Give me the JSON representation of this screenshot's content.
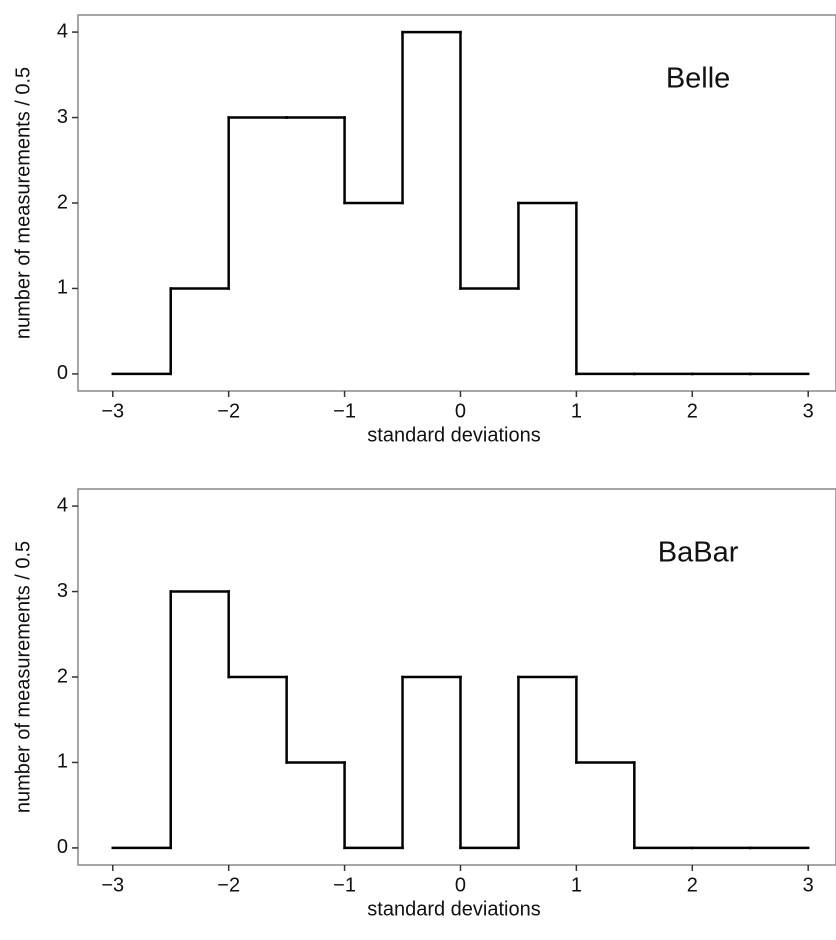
{
  "chart_data": [
    {
      "type": "histogram",
      "annotation": "Belle",
      "xlabel": "standard deviations",
      "ylabel": "number of measurements / 0.5",
      "bins": [
        -3,
        -2.5,
        -2,
        -1.5,
        -1,
        -0.5,
        0,
        0.5,
        1,
        1.5,
        2,
        2.5,
        3
      ],
      "values": [
        0,
        1,
        3,
        3,
        2,
        4,
        1,
        2,
        0,
        0,
        0,
        0
      ],
      "color": "#000000",
      "xlim": [
        -3.3,
        3.24
      ],
      "ylim": [
        -0.2,
        4.2
      ],
      "xticks": [
        {
          "value": -3,
          "label": "−3"
        },
        {
          "value": -2,
          "label": "−2"
        },
        {
          "value": -1,
          "label": "−1"
        },
        0,
        1,
        2,
        3
      ],
      "yticks": [
        0,
        1,
        2,
        3,
        4
      ]
    },
    {
      "type": "histogram",
      "annotation": "BaBar",
      "xlabel": "standard deviations",
      "ylabel": "number of measurements / 0.5",
      "bins": [
        -3,
        -2.5,
        -2,
        -1.5,
        -1,
        -0.5,
        0,
        0.5,
        1,
        1.5,
        2,
        2.5,
        3
      ],
      "values": [
        0,
        3,
        2,
        1,
        0,
        2,
        0,
        2,
        1,
        0,
        0,
        0
      ],
      "color": "#000000",
      "xlim": [
        -3.3,
        3.24
      ],
      "ylim": [
        -0.2,
        4.2
      ],
      "xticks": [
        {
          "value": -3,
          "label": "−3"
        },
        {
          "value": -2,
          "label": "−2"
        },
        {
          "value": -1,
          "label": "−1"
        },
        0,
        1,
        2,
        3
      ],
      "yticks": [
        0,
        1,
        2,
        3,
        4
      ]
    }
  ]
}
